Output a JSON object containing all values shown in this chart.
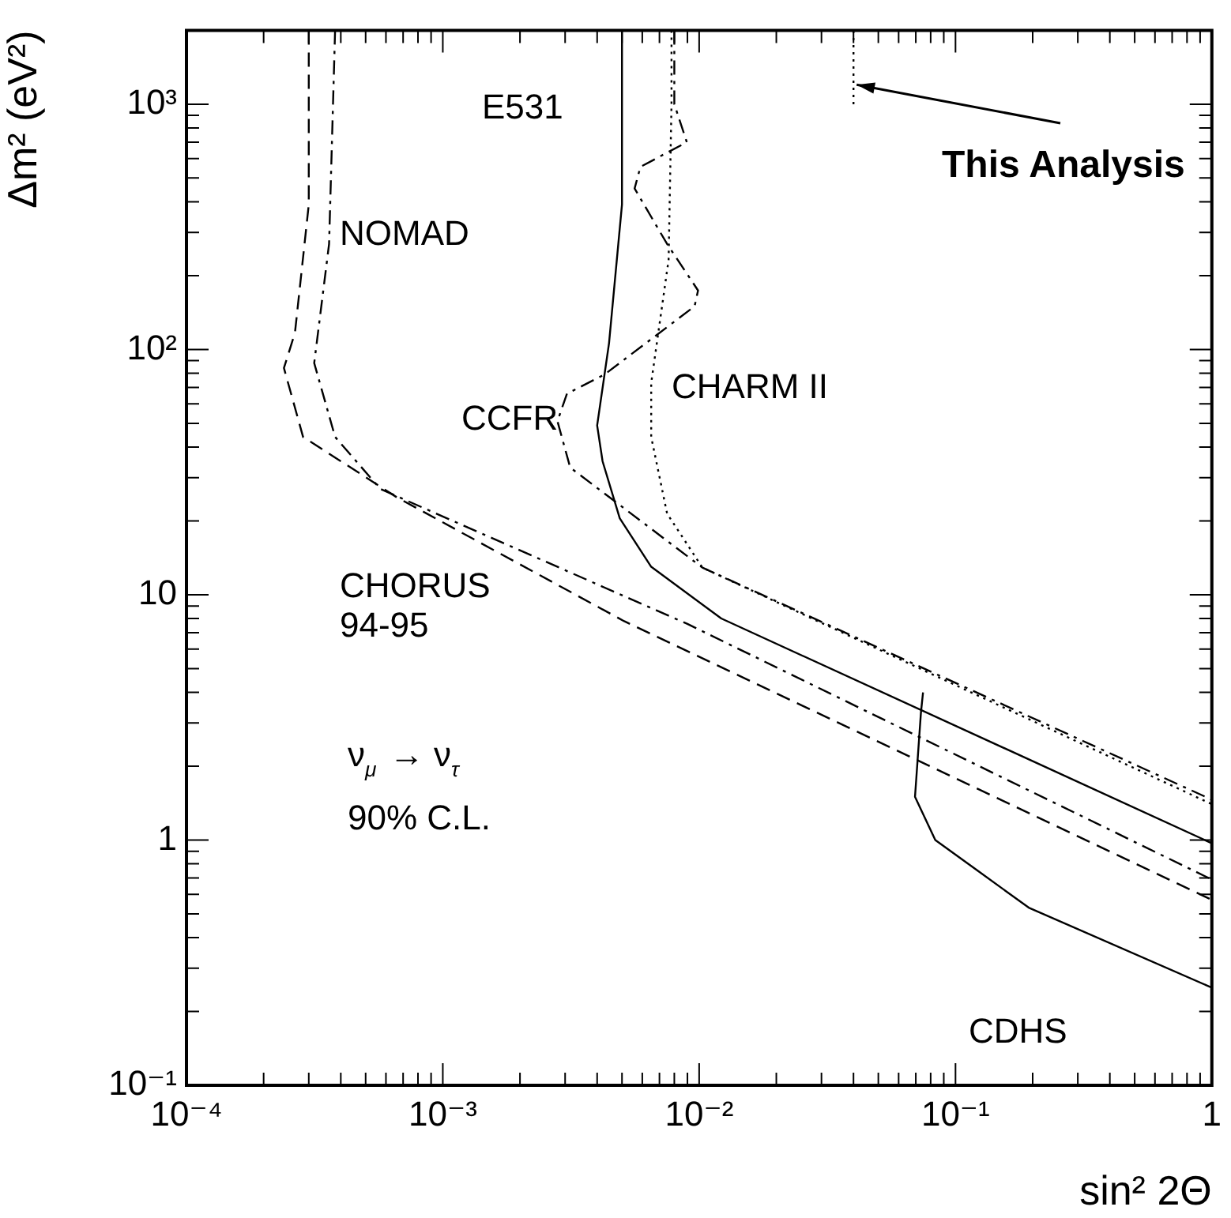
{
  "chart_data": {
    "type": "line",
    "xlabel": "sin² 2Θ",
    "ylabel": "Δm² (eV²)",
    "log": "xy",
    "grid": false,
    "legend": false,
    "marker": "none",
    "xlim": [
      0.0001,
      1
    ],
    "ylim": [
      0.1,
      2000
    ],
    "xticks": [
      {
        "value": 0.0001,
        "label": "10⁻⁴"
      },
      {
        "value": 0.001,
        "label": "10⁻³"
      },
      {
        "value": 0.01,
        "label": "10⁻²"
      },
      {
        "value": 0.1,
        "label": "10⁻¹"
      },
      1
    ],
    "yticks": [
      {
        "value": 0.1,
        "label": "10⁻¹"
      },
      1,
      10,
      {
        "value": 100,
        "label": "10²"
      },
      {
        "value": 1000,
        "label": "10³"
      }
    ],
    "series": [
      {
        "name": "CHORUS\n94-95",
        "color": "#000000",
        "line_style": "dashed",
        "x": [
          0.0003,
          0.0003,
          0.000265,
          0.00024,
          0.000285,
          0.00066,
          0.0051,
          1
        ],
        "values": [
          2000,
          390,
          117,
          84,
          44,
          25,
          7.8,
          0.57
        ]
      },
      {
        "name": "NOMAD",
        "color": "#000000",
        "line_style": "dashdot",
        "x": [
          0.00038,
          0.00036,
          0.000315,
          0.00038,
          0.00057,
          0.009,
          1
        ],
        "values": [
          2000,
          269,
          88,
          44,
          27,
          7.6,
          0.69
        ]
      },
      {
        "name": "E531",
        "color": "#000000",
        "line_style": "solid",
        "x": [
          0.005,
          0.005,
          0.00445,
          0.004,
          0.0042,
          0.0049,
          0.0065,
          0.0122,
          1
        ],
        "values": [
          2000,
          390,
          106,
          49,
          35,
          20.5,
          13,
          8,
          0.97
        ]
      },
      {
        "name": "CCFR",
        "color": "#000000",
        "line_style": "dashdot",
        "x": [
          0.008,
          0.008,
          0.00895,
          0.0059,
          0.0056,
          0.0075,
          0.0099,
          0.0096,
          0.00427,
          0.00305,
          0.0028,
          0.00314,
          0.0103,
          1
        ],
        "values": [
          2000,
          1000,
          700,
          555,
          453,
          269,
          174,
          150,
          79,
          66,
          51,
          33,
          12.9,
          1.46
        ]
      },
      {
        "name": "CHARM II",
        "color": "#000000",
        "line_style": "dotted",
        "x": [
          0.0078,
          0.0078,
          0.0076,
          0.0065,
          0.0065,
          0.0075,
          0.0103,
          1
        ],
        "values": [
          2000,
          1000,
          232,
          73,
          44,
          21.4,
          12.9,
          1.4
        ]
      },
      {
        "name": "CDHS",
        "color": "#000000",
        "line_style": "solid",
        "x": [
          0.0747,
          0.0733,
          0.0695,
          0.0834,
          0.122,
          0.193,
          1
        ],
        "values": [
          4,
          3.3,
          1.5,
          1,
          0.75,
          0.53,
          0.25
        ]
      },
      {
        "color": "#000000",
        "line_style": "dotted",
        "x": [
          0.04,
          0.04
        ],
        "values": [
          1000,
          2000
        ]
      }
    ],
    "annotations": [
      {
        "text": "This Analysis",
        "x": 0.04,
        "y": 1200
      },
      "ν$_{μ}$ → ν$_{τ}$",
      "90% C.L."
    ]
  }
}
